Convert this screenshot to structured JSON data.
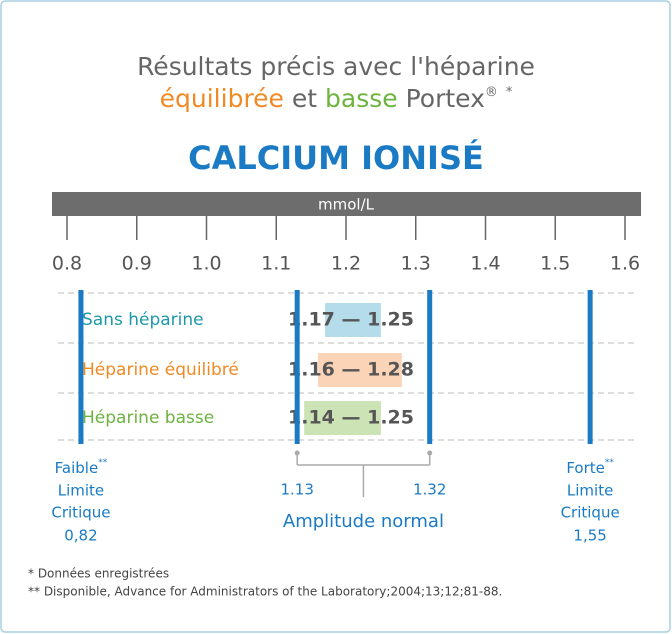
{
  "header": {
    "line1": "Résultats précis avec l'héparine",
    "word1": "équilibrée",
    "word1_color": "#f08a24",
    "and": "et",
    "word2": "basse",
    "word2_color": "#6db33f",
    "brand": "Portex",
    "mark": "®",
    "note": "*"
  },
  "chart_data": {
    "type": "range_bar",
    "title": "CALCIUM IONISÉ",
    "unit_label": "mmol/L",
    "xlim": [
      0.8,
      1.6
    ],
    "xticks": [
      0.8,
      0.9,
      {
        "value": 1,
        "label": "1.0"
      },
      1.1,
      1.2,
      1.3,
      1.4,
      1.5,
      1.6
    ],
    "categories": [
      "Sans héparine",
      "Héparine équilibré",
      "Héparine basse"
    ],
    "category_colors": [
      "#1a9aa8",
      "#f08a24",
      "#6db33f"
    ],
    "box_colors": [
      "#b4dcea",
      "#fbd3b6",
      "#cce3b5"
    ],
    "low": [
      1.17,
      1.16,
      1.14
    ],
    "high": [
      1.25,
      1.28,
      1.25
    ],
    "value_labels": [
      "1.17 — 1.25",
      "1.16 — 1.28",
      "1.14 — 1.25"
    ],
    "line_color": "#1a7bc4",
    "limits": [
      {
        "value": 0.82,
        "name": "Faible",
        "note": "**",
        "line1": "Limite",
        "line2": "Critique",
        "label": "0,82"
      },
      {
        "value": 1.55,
        "name": "Forte",
        "note": "**",
        "line1": "Limite",
        "line2": "Critique",
        "label": "1,55"
      }
    ],
    "normal": {
      "low": 1.13,
      "high": 1.32,
      "name": "Amplitude normal"
    }
  },
  "footnotes": [
    "* Données enregistrées",
    "** Disponible, Advance for Administrators of the Laboratory;2004;13;12;81-88."
  ]
}
